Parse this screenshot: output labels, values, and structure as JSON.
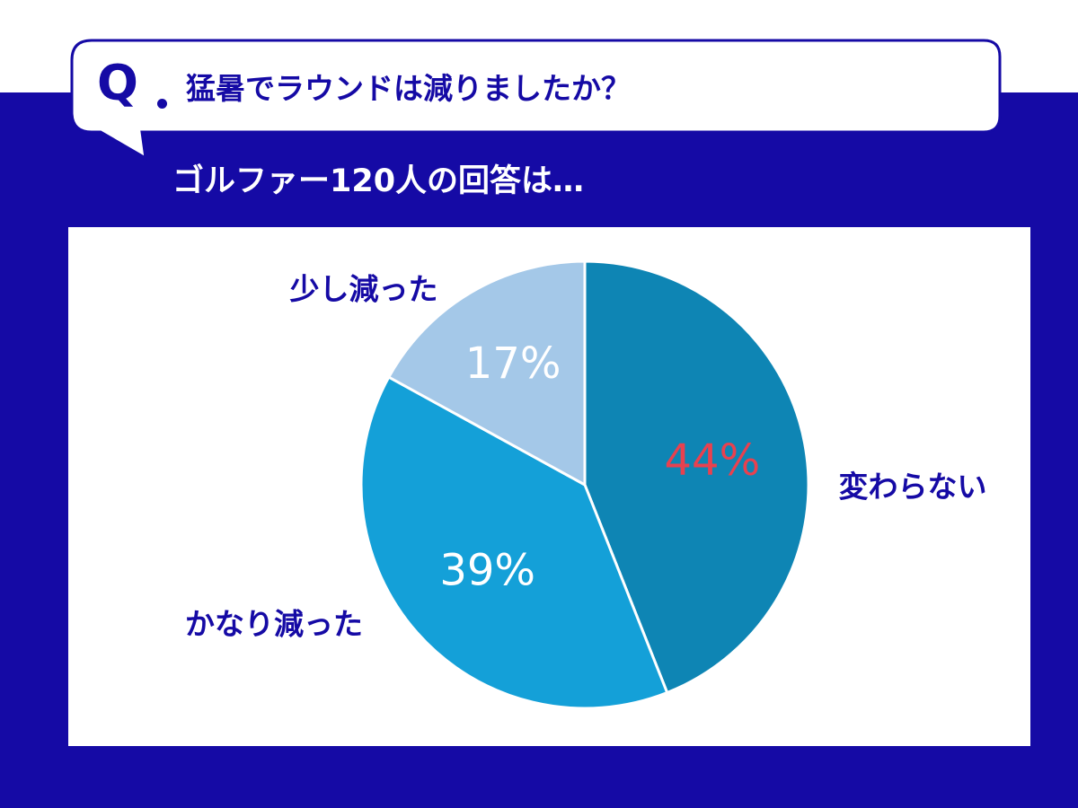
{
  "question": {
    "marker": "Q",
    "text": "猛暑でラウンドは減りましたか？"
  },
  "subtitle": "ゴルファー120人の回答は…",
  "colors": {
    "background": "#150aa5",
    "label_text": "#150aa5",
    "highlight_percent": "#e8414f",
    "percent_text": "#ffffff"
  },
  "chart_data": {
    "type": "pie",
    "title": "",
    "slices": [
      {
        "label": "変わらない",
        "value": 44,
        "percent_label": "44%",
        "color": "#0e85b4",
        "highlight": true
      },
      {
        "label": "かなり減った",
        "value": 39,
        "percent_label": "39%",
        "color": "#14a0d8",
        "highlight": false
      },
      {
        "label": "少し減った",
        "value": 17,
        "percent_label": "17%",
        "color": "#a4c8e8",
        "highlight": false
      }
    ],
    "start_angle_deg": 0,
    "direction": "clockwise",
    "legend": "none"
  }
}
